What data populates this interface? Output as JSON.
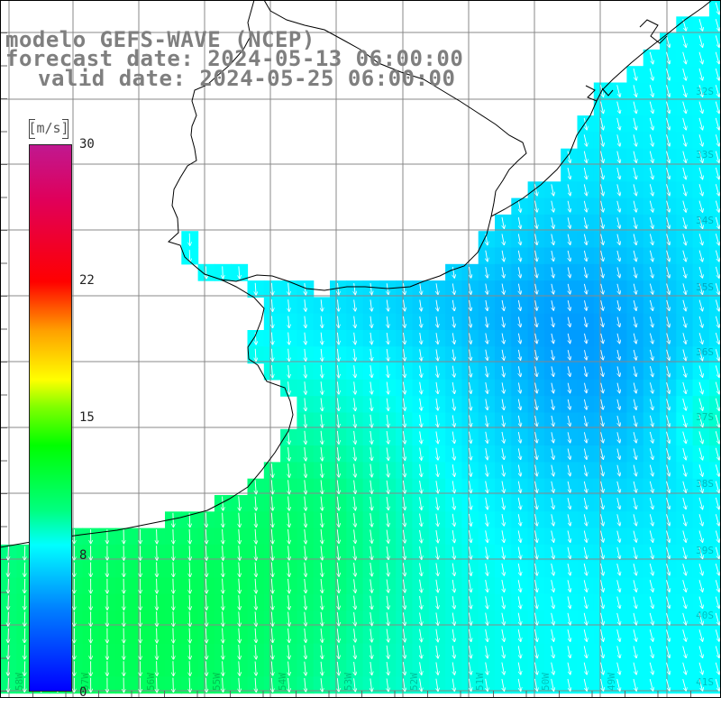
{
  "title": {
    "line1": "modelo GEFS-WAVE (NCEP)",
    "line2": "forecast date: 2024-05-13 06:00:00",
    "line3": "valid date: 2024-05-25 06:00:00"
  },
  "colorbar": {
    "unit": "[m/s]",
    "min": 0,
    "max": 30,
    "ticks": [
      "30",
      "22",
      "15",
      "8",
      "0"
    ],
    "tick_values": [
      30,
      22.5,
      15,
      7.5,
      0
    ],
    "colors": [
      "#0000ff",
      "#0080ff",
      "#00ffff",
      "#00ff80",
      "#00ff00",
      "#80ff00",
      "#ffff00",
      "#ffa000",
      "#ff0000",
      "#e0005a",
      "#c01890"
    ]
  },
  "map": {
    "region": "Uruguay / Río de la Plata / South Atlantic",
    "lon_range": [
      -59,
      -49
    ],
    "lat_range": [
      -42,
      -31
    ],
    "lat_labels": [
      "32S",
      "33S",
      "34S",
      "35S",
      "36S",
      "37S",
      "38S",
      "39S",
      "40S",
      "41S"
    ],
    "lon_labels": [
      "58W",
      "57W",
      "56W",
      "55W",
      "54W",
      "53W",
      "52W",
      "51W",
      "50W",
      "49W"
    ],
    "wind_direction": "northerly (arrows pointing south)",
    "speed_range_ms": [
      5,
      11
    ]
  }
}
